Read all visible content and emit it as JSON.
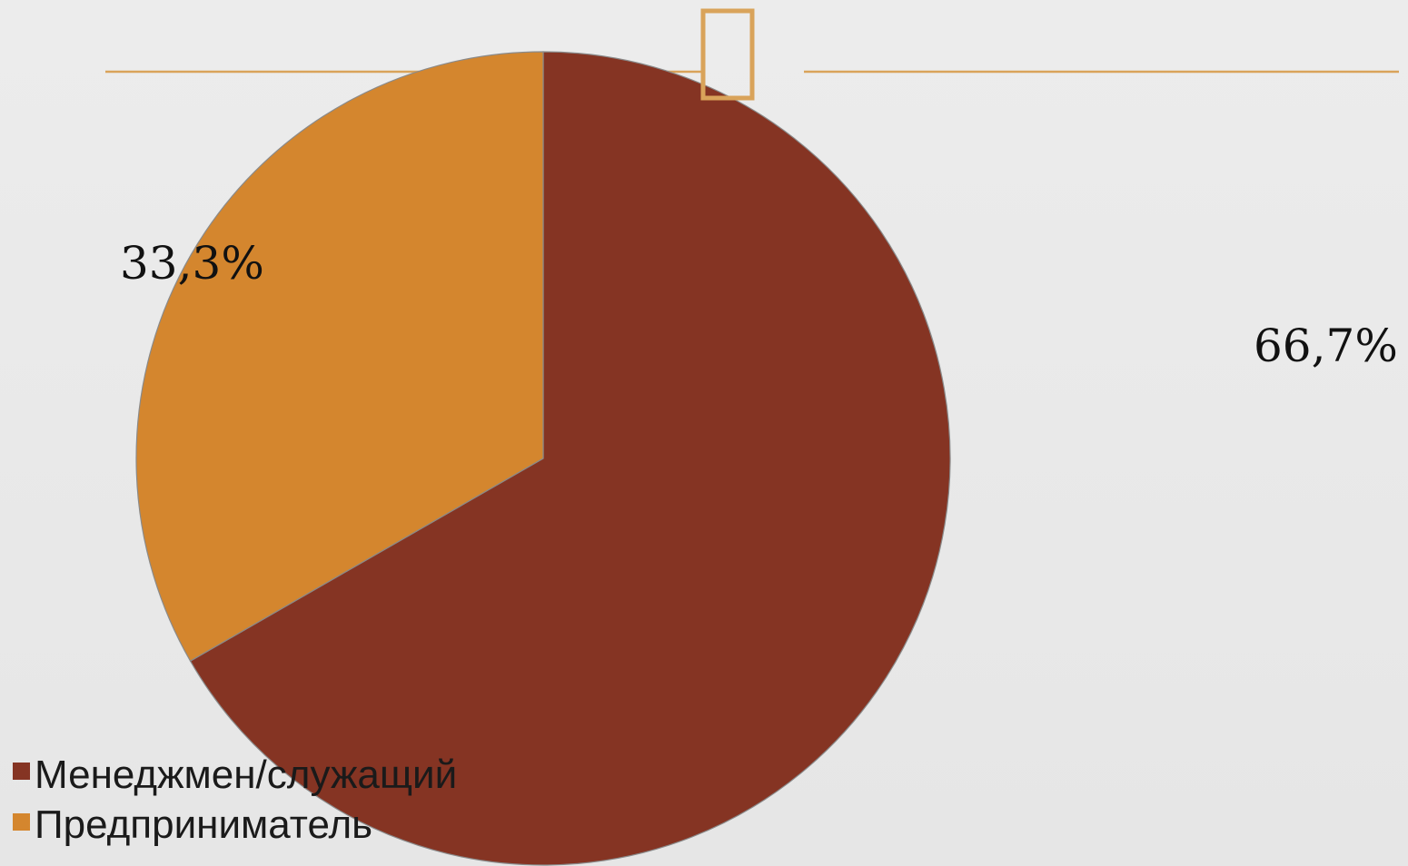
{
  "slide": {
    "background": "#e9e9e9",
    "accent_color": "#d9a35a"
  },
  "chart_data": {
    "type": "pie",
    "title": "",
    "slices": [
      {
        "name": "Менеджмен/служащий",
        "value": 66.7,
        "label": "66,7%",
        "color": "#853423"
      },
      {
        "name": "Предприниматель",
        "value": 33.3,
        "label": "33,3%",
        "color": "#d4862e"
      }
    ],
    "legend": {
      "placement": "bottom-left",
      "entries": [
        "Менеджмен/служащий",
        "Предприниматель"
      ]
    }
  }
}
